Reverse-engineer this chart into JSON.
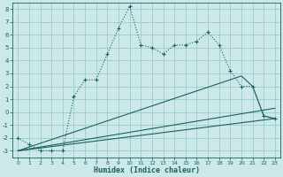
{
  "xlabel": "Humidex (Indice chaleur)",
  "bg_color": "#cce8e8",
  "grid_color": "#99cccc",
  "line_color": "#1a6060",
  "xlim": [
    -0.5,
    23.5
  ],
  "ylim": [
    -3.5,
    8.5
  ],
  "xticks": [
    0,
    1,
    2,
    3,
    4,
    5,
    6,
    7,
    8,
    9,
    10,
    11,
    12,
    13,
    14,
    15,
    16,
    17,
    18,
    19,
    20,
    21,
    22,
    23
  ],
  "yticks": [
    -3,
    -2,
    -1,
    0,
    1,
    2,
    3,
    4,
    5,
    6,
    7,
    8
  ],
  "main_line_x": [
    0,
    1,
    2,
    3,
    4,
    5,
    6,
    7,
    8,
    9,
    10,
    11,
    12,
    13,
    14,
    15,
    16,
    17,
    18,
    19,
    20,
    21,
    22,
    23
  ],
  "main_line_y": [
    -2.0,
    -2.5,
    -3.0,
    -3.0,
    -3.0,
    1.2,
    2.5,
    2.5,
    4.5,
    6.5,
    8.2,
    5.2,
    5.0,
    4.5,
    5.2,
    5.2,
    5.5,
    6.2,
    5.2,
    3.2,
    2.0,
    2.0,
    -0.3,
    -0.5
  ],
  "line2_x": [
    0,
    20,
    21,
    22,
    23
  ],
  "line2_y": [
    -3.0,
    2.8,
    2.0,
    -0.3,
    -0.5
  ],
  "line3_x": [
    0,
    23
  ],
  "line3_y": [
    -3.0,
    0.3
  ],
  "line4_x": [
    0,
    23
  ],
  "line4_y": [
    -3.0,
    -0.5
  ]
}
